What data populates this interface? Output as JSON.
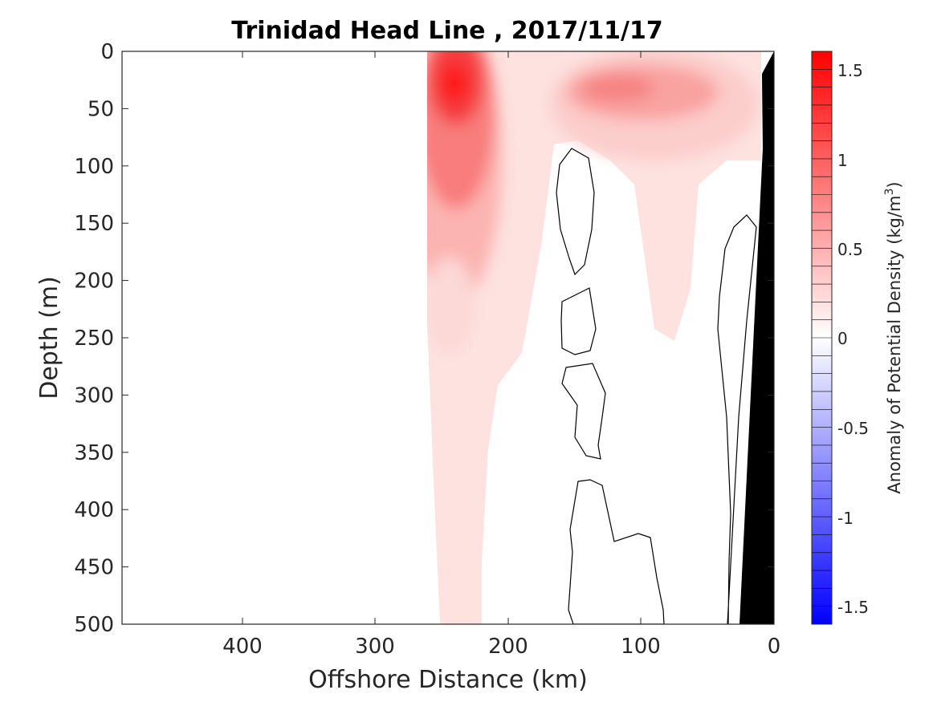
{
  "chart_data": {
    "type": "contour",
    "title": "Trinidad Head Line , 2017/11/17",
    "xlabel": "Offshore Distance (km)",
    "ylabel": "Depth (m)",
    "xlim": [
      490,
      0
    ],
    "ylim": [
      0,
      500
    ],
    "x_ticks": [
      400,
      300,
      200,
      100,
      0
    ],
    "x_tick_labels": [
      "400",
      "300",
      "200",
      "100",
      "0"
    ],
    "y_ticks": [
      0,
      50,
      100,
      150,
      200,
      250,
      300,
      350,
      400,
      450,
      500
    ],
    "y_tick_labels": [
      "0",
      "50",
      "100",
      "150",
      "200",
      "250",
      "300",
      "350",
      "400",
      "450",
      "500"
    ],
    "y_reversed": true,
    "colorbar": {
      "label_prefix": "Anomaly of Potential Density (kg/m",
      "label_sup": "3",
      "label_suffix": ")",
      "range": [
        -1.6,
        1.6
      ],
      "step": 0.1,
      "tick_values": [
        1.5,
        1,
        0.5,
        0,
        -0.5,
        -1,
        -1.5
      ],
      "tick_labels": [
        "1.5",
        "1",
        "0.5",
        "0",
        "-0.5",
        "-1",
        "-1.5"
      ],
      "colormap": "blue-white-red"
    },
    "data_extent_km": [
      263,
      0
    ],
    "features": [
      {
        "name": "near-surface maximum",
        "x_km": 240,
        "depth_m": 35,
        "anomaly": 1.5
      },
      {
        "name": "secondary maximum",
        "x_km": 100,
        "depth_m": 30,
        "anomaly": 0.6
      },
      {
        "name": "seafloor/land mask",
        "color": "#000000"
      }
    ],
    "zero_contours": 5,
    "colors": {
      "positive": "#ff0000",
      "zero": "#ffffff",
      "negative": "#0000ff",
      "mask": "#000000"
    }
  }
}
